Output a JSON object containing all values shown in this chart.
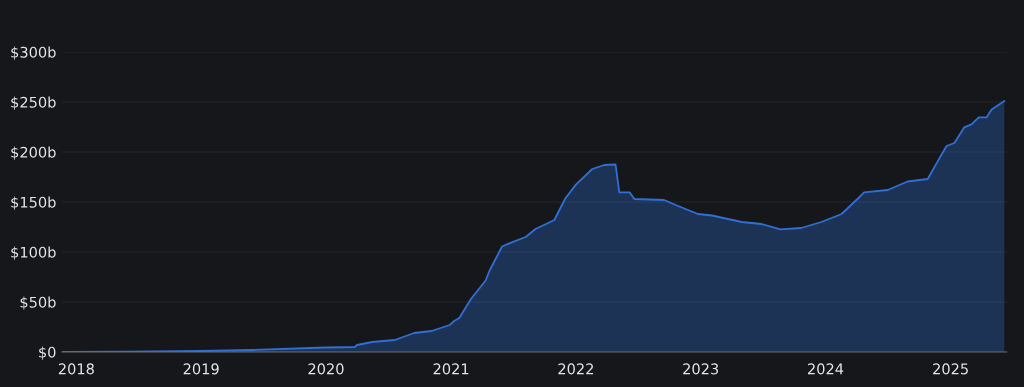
{
  "chart_data": {
    "type": "area",
    "x": [
      "2017-11-20",
      "2018-06-01",
      "2019-01-01",
      "2019-06-01",
      "2020-01-01",
      "2020-03-25",
      "2020-04-01",
      "2020-05-15",
      "2020-07-20",
      "2020-09-15",
      "2020-11-05",
      "2020-12-28",
      "2021-01-10",
      "2021-01-25",
      "2021-02-28",
      "2021-04-12",
      "2021-04-23",
      "2021-05-30",
      "2021-06-20",
      "2021-08-07",
      "2021-09-05",
      "2021-10-30",
      "2021-12-01",
      "2022-01-01",
      "2022-02-18",
      "2022-03-25",
      "2022-04-27",
      "2022-05-08",
      "2022-06-07",
      "2022-06-21",
      "2022-09-16",
      "2022-10-27",
      "2022-12-24",
      "2023-02-03",
      "2023-05-01",
      "2023-06-28",
      "2023-08-22",
      "2023-10-22",
      "2023-12-20",
      "2024-02-17",
      "2024-04-05",
      "2024-04-23",
      "2024-07-01",
      "2024-08-28",
      "2024-10-26",
      "2024-11-24",
      "2024-12-20",
      "2025-01-12",
      "2025-02-10",
      "2025-03-04",
      "2025-03-24",
      "2025-04-16",
      "2025-05-01",
      "2025-06-07"
    ],
    "series": [
      {
        "color": "#2f6fd6",
        "values": [
          0,
          0.3,
          1,
          2,
          4.5,
          5,
          7,
          10,
          12,
          19,
          21,
          27,
          31,
          34,
          53,
          71.5,
          81,
          105.5,
          108.6,
          115,
          123,
          132,
          153.5,
          167.4,
          183,
          187,
          187.5,
          159.7,
          159.7,
          153,
          152,
          146,
          138,
          136.5,
          130,
          128,
          122.6,
          124,
          130,
          138,
          153.5,
          159.7,
          162,
          170.5,
          173,
          190.6,
          206,
          209,
          224.7,
          227.8,
          234.6,
          234.6,
          242.6,
          251
        ]
      }
    ],
    "xlim": [
      "2017-11-20",
      "2025-06-14"
    ],
    "xticks": [
      "2018",
      "2019",
      "2020",
      "2021",
      "2022",
      "2023",
      "2024",
      "2025"
    ],
    "ylim": [
      0,
      300
    ],
    "yticks": [
      {
        "value": 0,
        "label": "$0"
      },
      {
        "value": 50,
        "label": "$50b"
      },
      {
        "value": 100,
        "label": "$100b"
      },
      {
        "value": 150,
        "label": "$150b"
      },
      {
        "value": 200,
        "label": "$200b"
      },
      {
        "value": 250,
        "label": "$250b"
      },
      {
        "value": 300,
        "label": "$300b"
      }
    ],
    "grid": "y",
    "legend": false
  }
}
